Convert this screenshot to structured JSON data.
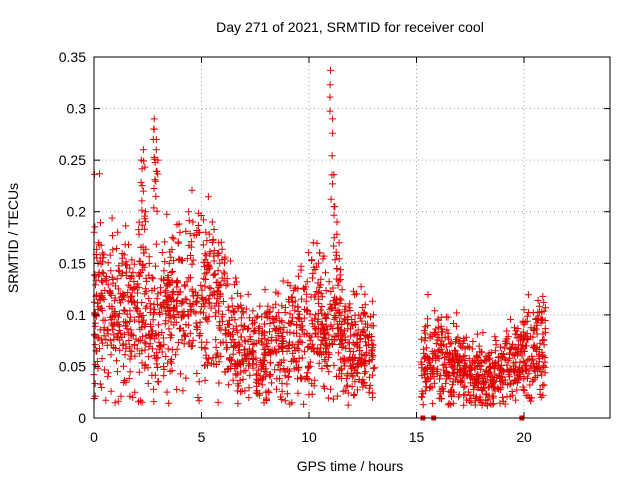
{
  "chart_data": {
    "type": "scatter",
    "title": "Day 271 of 2021, SRMTID for receiver cool",
    "xlabel": "GPS time / hours",
    "ylabel": "SRMTID / TECUs",
    "xlim": [
      0,
      24
    ],
    "ylim": [
      0,
      0.35
    ],
    "xticks": [
      0,
      5,
      10,
      15,
      20
    ],
    "xtick_labels": [
      "0",
      "5",
      "10",
      "15",
      "20"
    ],
    "yticks": [
      0,
      0.05,
      0.1,
      0.15,
      0.2,
      0.25,
      0.3,
      0.35
    ],
    "ytick_labels": [
      "0",
      "0.05",
      "0.1",
      "0.15",
      "0.2",
      "0.25",
      "0.3",
      "0.35"
    ],
    "grid": true,
    "marker": "+",
    "color": "#e00000",
    "series": [
      {
        "name": "SRMTID",
        "segments": [
          {
            "x_start": 0.0,
            "x_end": 13.0,
            "centers": [
              [
                0.0,
                0.11
              ],
              [
                0.5,
                0.12
              ],
              [
                1.0,
                0.1
              ],
              [
                1.5,
                0.1
              ],
              [
                2.0,
                0.11
              ],
              [
                2.5,
                0.1
              ],
              [
                3.0,
                0.09
              ],
              [
                3.5,
                0.1
              ],
              [
                4.0,
                0.11
              ],
              [
                4.5,
                0.11
              ],
              [
                5.0,
                0.11
              ],
              [
                5.5,
                0.11
              ],
              [
                6.0,
                0.1
              ],
              [
                6.5,
                0.07
              ],
              [
                7.0,
                0.06
              ],
              [
                7.5,
                0.06
              ],
              [
                8.0,
                0.07
              ],
              [
                8.5,
                0.07
              ],
              [
                9.0,
                0.08
              ],
              [
                9.5,
                0.08
              ],
              [
                10.0,
                0.08
              ],
              [
                10.5,
                0.09
              ],
              [
                11.0,
                0.08
              ],
              [
                11.5,
                0.08
              ],
              [
                12.0,
                0.07
              ],
              [
                12.5,
                0.07
              ],
              [
                13.0,
                0.06
              ]
            ]
          },
          {
            "x_start": 15.2,
            "x_end": 21.0,
            "centers": [
              [
                15.2,
                0.05
              ],
              [
                15.7,
                0.06
              ],
              [
                16.2,
                0.06
              ],
              [
                16.7,
                0.05
              ],
              [
                17.2,
                0.045
              ],
              [
                17.7,
                0.04
              ],
              [
                18.2,
                0.04
              ],
              [
                18.7,
                0.045
              ],
              [
                19.2,
                0.05
              ],
              [
                19.7,
                0.055
              ],
              [
                20.2,
                0.065
              ],
              [
                20.7,
                0.07
              ],
              [
                21.0,
                0.07
              ]
            ]
          }
        ],
        "spikes": [
          [
            0.2,
            0.17
          ],
          [
            0.4,
            0.16
          ],
          [
            1.1,
            0.18
          ],
          [
            1.3,
            0.15
          ],
          [
            2.2,
            0.25
          ],
          [
            2.3,
            0.26
          ],
          [
            2.3,
            0.22
          ],
          [
            2.4,
            0.2
          ],
          [
            2.8,
            0.29
          ],
          [
            2.8,
            0.28
          ],
          [
            2.9,
            0.26
          ],
          [
            2.9,
            0.27
          ],
          [
            3.5,
            0.15
          ],
          [
            4.4,
            0.2
          ],
          [
            4.6,
            0.19
          ],
          [
            5.2,
            0.18
          ],
          [
            5.5,
            0.19
          ],
          [
            5.8,
            0.17
          ],
          [
            10.2,
            0.17
          ],
          [
            10.5,
            0.16
          ],
          [
            11.0,
            0.337
          ],
          [
            11.1,
            0.29
          ],
          [
            11.1,
            0.227
          ],
          [
            11.2,
            0.205
          ],
          [
            11.3,
            0.19
          ],
          [
            11.4,
            0.17
          ],
          [
            12.6,
            0.12
          ],
          [
            13.0,
            0.1
          ],
          [
            20.0,
            0.105
          ],
          [
            20.6,
            0.09
          ]
        ],
        "lows": [
          [
            1.8,
            0.02
          ],
          [
            1.9,
            0.025
          ],
          [
            3.0,
            0.035
          ],
          [
            7.7,
            0.022
          ],
          [
            8.0,
            0.025
          ],
          [
            12.5,
            0.03
          ],
          [
            18.0,
            0.015
          ],
          [
            18.3,
            0.012
          ],
          [
            19.0,
            0.02
          ]
        ],
        "zero_points": [
          15.3,
          15.8,
          19.9
        ]
      }
    ]
  }
}
